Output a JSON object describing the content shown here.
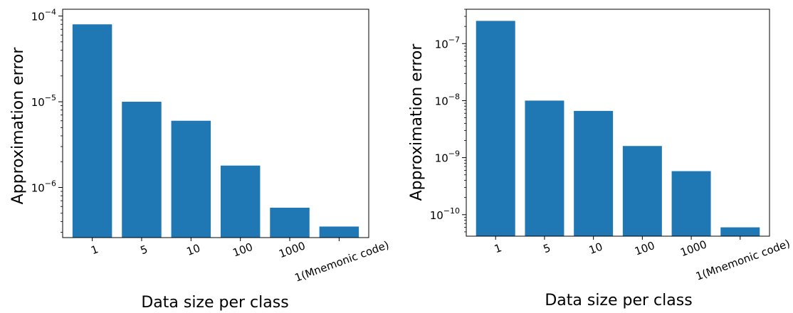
{
  "chart_data": [
    {
      "type": "bar",
      "y_scale": "log",
      "categories": [
        "1",
        "5",
        "10",
        "100",
        "1000",
        "1(Mnemonic code)"
      ],
      "values": [
        8e-05,
        1e-05,
        6e-06,
        1.8e-06,
        5.8e-07,
        3.5e-07
      ],
      "xlabel": "Data size per class",
      "ylabel": "Approximation error",
      "ylim": [
        2.6e-07,
        0.00012
      ],
      "yticks": [
        {
          "value": 0.0001,
          "base": "10",
          "exp": "−4"
        },
        {
          "value": 1e-05,
          "base": "10",
          "exp": "−5"
        },
        {
          "value": 1e-06,
          "base": "10",
          "exp": "−6"
        }
      ],
      "bar_color": "#1f77b4",
      "grid": false
    },
    {
      "type": "bar",
      "y_scale": "log",
      "categories": [
        "1",
        "5",
        "10",
        "100",
        "1000",
        "1(Mnemonic code)"
      ],
      "values": [
        2.5e-07,
        1e-08,
        6.6e-09,
        1.6e-09,
        5.8e-10,
        6e-11
      ],
      "xlabel": "Data size per class",
      "ylabel": "Approximation error",
      "ylim": [
        4.2e-11,
        4e-07
      ],
      "yticks": [
        {
          "value": 1e-07,
          "base": "10",
          "exp": "−7"
        },
        {
          "value": 1e-08,
          "base": "10",
          "exp": "−8"
        },
        {
          "value": 1e-09,
          "base": "10",
          "exp": "−9"
        },
        {
          "value": 1e-10,
          "base": "10",
          "exp": "−10"
        }
      ],
      "bar_color": "#1f77b4",
      "grid": false
    }
  ]
}
